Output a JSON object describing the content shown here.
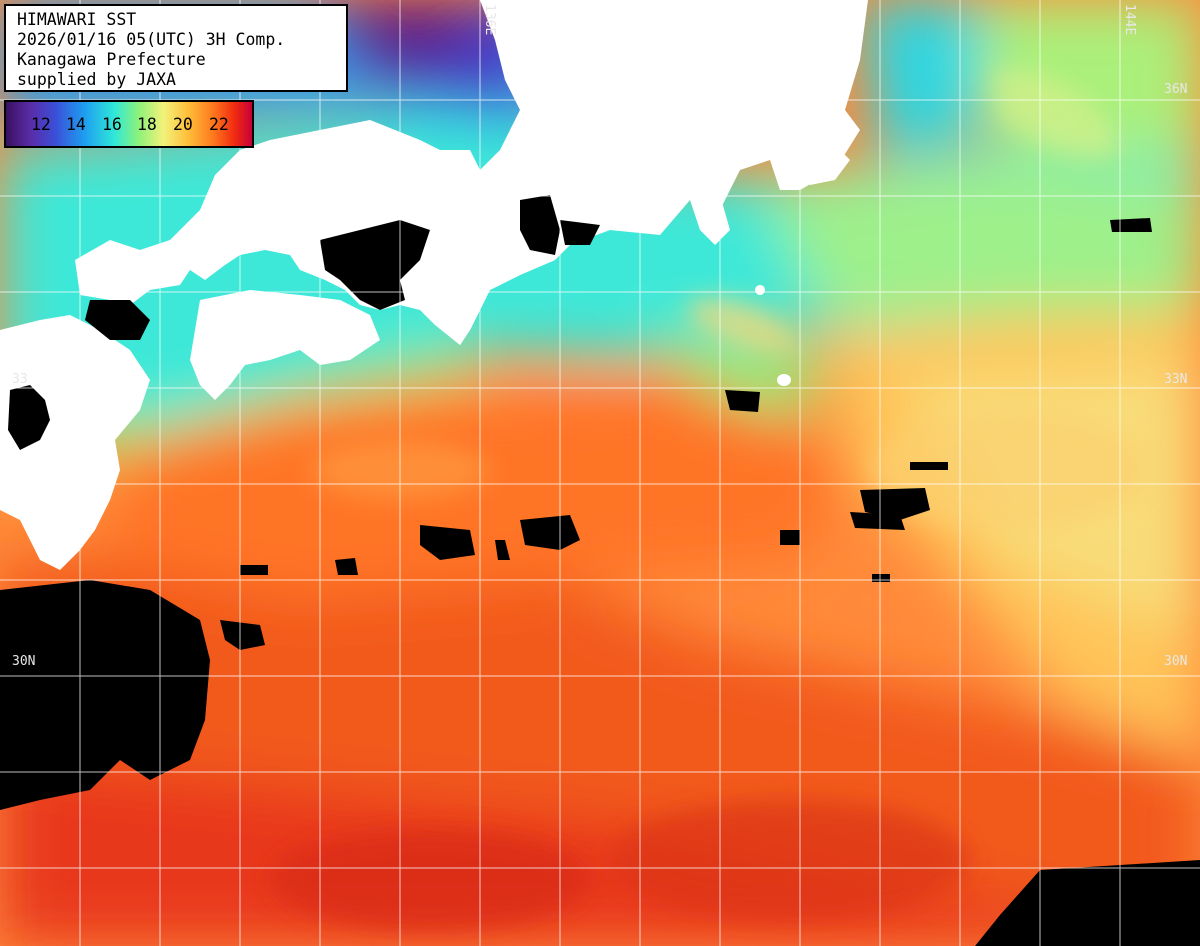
{
  "info": {
    "title": "HIMAWARI SST",
    "datetime": "2026/01/16 05(UTC) 3H Comp.",
    "region": "Kanagawa Prefecture",
    "credit": "supplied by JAXA"
  },
  "legend": {
    "ticks": [
      "12",
      "14",
      "16",
      "18",
      "20",
      "22"
    ],
    "unit_scale": "sea-surface-temperature-celsius",
    "colors": [
      "#3a1060",
      "#3a4fd8",
      "#1e9ef0",
      "#2fe8d8",
      "#8ef27a",
      "#f2f27a",
      "#ffbe3a",
      "#ff7a1e",
      "#f02a10",
      "#c8003a"
    ]
  },
  "grid_labels": {
    "lon_136": "136E",
    "lon_144": "144E",
    "lat_36_right": "36N",
    "lat_33_right": "33N",
    "lat_33_left": "33",
    "lat_30_left": "30N",
    "lat_30_right": "30N"
  },
  "colors": {
    "land": "#ffffff",
    "no_data": "#000000",
    "grid": "#ffffff"
  }
}
